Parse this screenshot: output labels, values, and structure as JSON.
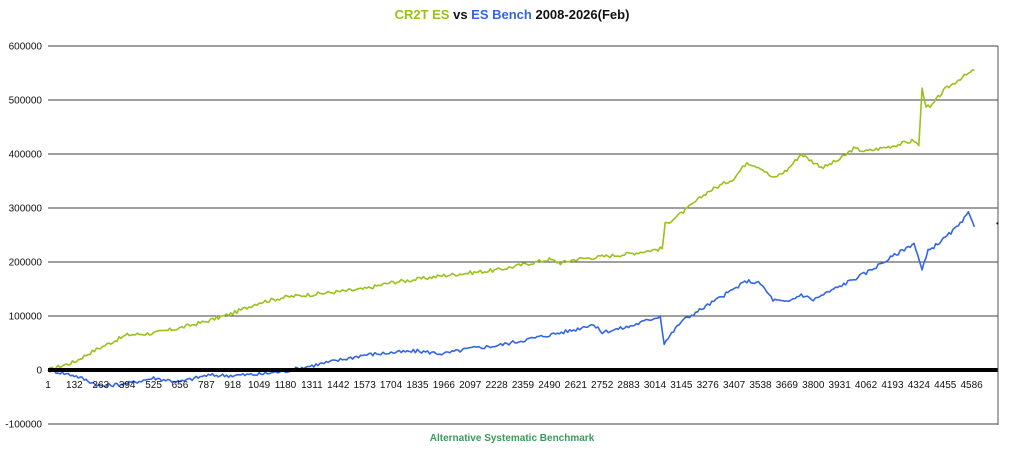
{
  "title": {
    "series_a": "CR2T ES",
    "sep": " vs ",
    "series_b": "ES Bench",
    "period": " 2008-2026(Feb)"
  },
  "colors": {
    "series_a": "#99c21a",
    "series_b": "#3366e6",
    "xlabel": "#3a9a5c",
    "zero_line": "#000000",
    "grid": "#000000"
  },
  "chart_data": {
    "type": "line",
    "title": "CR2T ES vs ES Bench 2008-2026(Feb)",
    "xlabel": "Alternative Systematic Benchmark",
    "ylabel": "",
    "xlim": [
      1,
      4717
    ],
    "ylim": [
      -100000,
      600000
    ],
    "grid": true,
    "legend": "none",
    "y_ticks": [
      "600000",
      "500000",
      "400000",
      "300000",
      "200000",
      "100000",
      "0",
      "-100000"
    ],
    "y_tick_values": [
      600000,
      500000,
      400000,
      300000,
      200000,
      100000,
      0,
      -100000
    ],
    "x_ticks": [
      "1",
      "132",
      "263",
      "394",
      "525",
      "656",
      "787",
      "918",
      "1049",
      "1180",
      "1311",
      "1442",
      "1573",
      "1704",
      "1835",
      "1966",
      "2097",
      "2228",
      "2359",
      "2490",
      "2621",
      "2752",
      "2883",
      "3014",
      "3145",
      "3276",
      "3407",
      "3538",
      "3669",
      "3800",
      "3931",
      "4062",
      "4193",
      "4324",
      "4455",
      "4586"
    ],
    "x_tick_values": [
      1,
      132,
      263,
      394,
      525,
      656,
      787,
      918,
      1049,
      1180,
      1311,
      1442,
      1573,
      1704,
      1835,
      1966,
      2097,
      2228,
      2359,
      2490,
      2621,
      2752,
      2883,
      3014,
      3145,
      3276,
      3407,
      3538,
      3669,
      3800,
      3931,
      4062,
      4193,
      4324,
      4455,
      4586
    ],
    "series": [
      {
        "name": "CR2T ES",
        "x": [
          1,
          132,
          200,
          263,
          394,
          525,
          656,
          787,
          918,
          1049,
          1180,
          1311,
          1442,
          1573,
          1704,
          1835,
          1966,
          2097,
          2228,
          2359,
          2490,
          2545,
          2621,
          2752,
          2883,
          3050,
          3065,
          3145,
          3276,
          3407,
          3470,
          3538,
          3600,
          3669,
          3740,
          3800,
          3850,
          3931,
          4000,
          4062,
          4193,
          4300,
          4324,
          4340,
          4360,
          4380,
          4420,
          4455,
          4530,
          4600
        ],
        "y": [
          0,
          15000,
          30000,
          42000,
          65000,
          68000,
          78000,
          90000,
          105000,
          125000,
          135000,
          140000,
          145000,
          150000,
          162000,
          168000,
          175000,
          180000,
          185000,
          195000,
          205000,
          198000,
          205000,
          210000,
          215000,
          225000,
          270000,
          290000,
          330000,
          355000,
          385000,
          375000,
          355000,
          370000,
          400000,
          385000,
          375000,
          390000,
          410000,
          405000,
          415000,
          425000,
          415000,
          520000,
          490000,
          485000,
          505000,
          520000,
          540000,
          555000
        ]
      },
      {
        "name": "ES Bench",
        "x": [
          1,
          132,
          200,
          263,
          394,
          525,
          656,
          787,
          918,
          1049,
          1180,
          1311,
          1442,
          1573,
          1704,
          1835,
          1966,
          2097,
          2228,
          2359,
          2490,
          2621,
          2700,
          2752,
          2883,
          3000,
          3040,
          3060,
          3145,
          3276,
          3407,
          3470,
          3538,
          3600,
          3669,
          3740,
          3800,
          3931,
          4062,
          4193,
          4300,
          4340,
          4370,
          4455,
          4530,
          4570,
          4600
        ],
        "y": [
          0,
          -10000,
          -20000,
          -30000,
          -25000,
          -15000,
          -22000,
          -10000,
          -10000,
          -8000,
          -2000,
          8000,
          18000,
          28000,
          32000,
          35000,
          30000,
          40000,
          45000,
          55000,
          65000,
          75000,
          85000,
          70000,
          80000,
          95000,
          100000,
          50000,
          90000,
          120000,
          150000,
          165000,
          160000,
          130000,
          125000,
          140000,
          130000,
          155000,
          180000,
          210000,
          235000,
          185000,
          220000,
          245000,
          270000,
          290000,
          265000
        ]
      }
    ]
  }
}
